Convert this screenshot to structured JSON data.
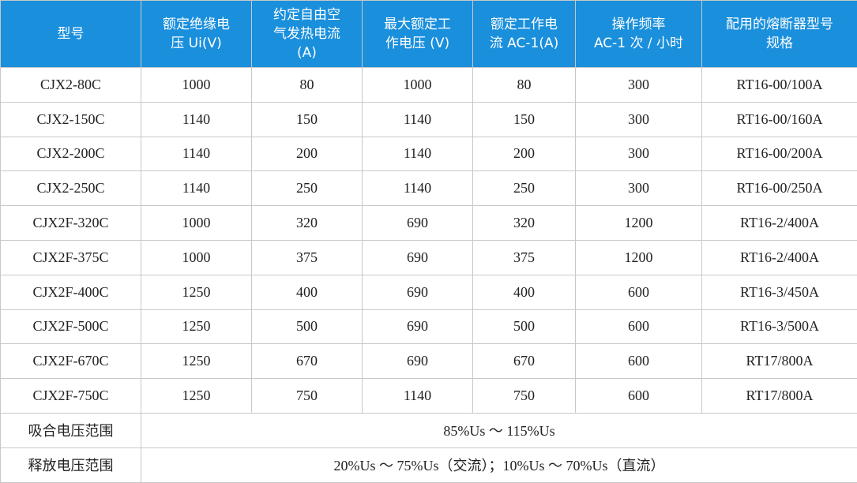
{
  "table": {
    "header": [
      [
        "型号"
      ],
      [
        "额定绝缘电",
        "压 Ui(V)"
      ],
      [
        "约定自由空",
        "气发热电流",
        "(A)"
      ],
      [
        "最大额定工",
        "作电压 (V)"
      ],
      [
        "额定工作电",
        "流 AC-1(A)"
      ],
      [
        "操作频率",
        "AC-1 次 / 小时"
      ],
      [
        "配用的熔断器型号",
        "规格"
      ]
    ],
    "rows": [
      [
        "CJX2-80C",
        1000,
        80,
        1000,
        80,
        300,
        "RT16-00/100A"
      ],
      [
        "CJX2-150C",
        1140,
        150,
        1140,
        150,
        300,
        "RT16-00/160A"
      ],
      [
        "CJX2-200C",
        1140,
        200,
        1140,
        200,
        300,
        "RT16-00/200A"
      ],
      [
        "CJX2-250C",
        1140,
        250,
        1140,
        250,
        300,
        "RT16-00/250A"
      ],
      [
        "CJX2F-320C",
        1000,
        320,
        690,
        320,
        1200,
        "RT16-2/400A"
      ],
      [
        "CJX2F-375C",
        1000,
        375,
        690,
        375,
        1200,
        "RT16-2/400A"
      ],
      [
        "CJX2F-400C",
        1250,
        400,
        690,
        400,
        600,
        "RT16-3/450A"
      ],
      [
        "CJX2F-500C",
        1250,
        500,
        690,
        500,
        600,
        "RT16-3/500A"
      ],
      [
        "CJX2F-670C",
        1250,
        670,
        690,
        670,
        600,
        "RT17/800A"
      ],
      [
        "CJX2F-750C",
        1250,
        750,
        1140,
        750,
        600,
        "RT17/800A"
      ]
    ],
    "footer": [
      {
        "label": "吸合电压范围",
        "value": "85%Us ～ 115%Us"
      },
      {
        "label": "释放电压范围",
        "value": "20%Us ～ 75%Us（交流）；10%Us ～ 70%Us（直流）"
      }
    ]
  }
}
